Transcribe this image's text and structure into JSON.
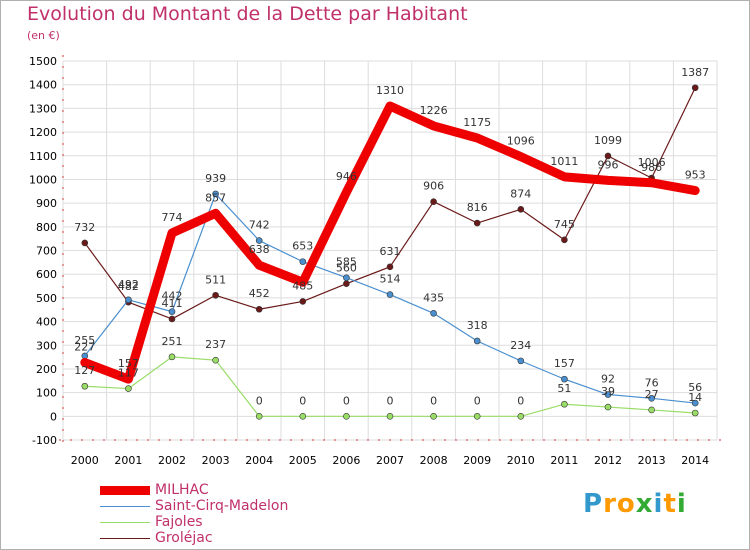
{
  "title": "Evolution du Montant de la Dette par Habitant",
  "unit": "(en €)",
  "logo": {
    "text": "Proxiti",
    "colors": [
      "#3399cc",
      "#ff9900",
      "#ff9900",
      "#33aa33",
      "#3399cc",
      "#ff9900",
      "#33aa33"
    ]
  },
  "chart_data": {
    "type": "line",
    "x": [
      "2000",
      "2001",
      "2002",
      "2003",
      "2004",
      "2005",
      "2006",
      "2007",
      "2008",
      "2009",
      "2010",
      "2011",
      "2012",
      "2013",
      "2014"
    ],
    "ylim": [
      -100,
      1500
    ],
    "yticks": [
      -100,
      0,
      100,
      200,
      300,
      400,
      500,
      600,
      700,
      800,
      900,
      1000,
      1100,
      1200,
      1300,
      1400,
      1500
    ],
    "grid": true,
    "legend_position": "bottom-left",
    "series": [
      {
        "name": "MILHAC",
        "color": "#ee0000",
        "values": [
          227,
          157,
          774,
          857,
          638,
          566,
          946,
          1310,
          1226,
          1175,
          1096,
          1011,
          996,
          986,
          953
        ],
        "labels": [
          "227",
          "157",
          "774",
          "857",
          "638",
          "",
          "946",
          "1310",
          "1226",
          "1175",
          "1096",
          "1011",
          "996",
          "986",
          "953"
        ]
      },
      {
        "name": "Saint-Cirq-Madelon",
        "color": "#4a8fcf",
        "values": [
          255,
          492,
          442,
          939,
          742,
          653,
          585,
          514,
          435,
          318,
          234,
          157,
          92,
          76,
          56
        ],
        "labels": [
          "255",
          "492",
          "442",
          "939",
          "742",
          "653",
          "585",
          "514",
          "435",
          "318",
          "234",
          "157",
          "92",
          "76",
          "56"
        ]
      },
      {
        "name": "Fajoles",
        "color": "#99dd66",
        "values": [
          127,
          117,
          251,
          237,
          0,
          0,
          0,
          0,
          0,
          0,
          0,
          51,
          39,
          27,
          14
        ],
        "labels": [
          "127",
          "117",
          "251",
          "237",
          "0",
          "0",
          "0",
          "0",
          "0",
          "0",
          "0",
          "51",
          "39",
          "27",
          "14"
        ]
      },
      {
        "name": "Groléjac",
        "color": "#6b1a1a",
        "values": [
          732,
          482,
          411,
          511,
          452,
          485,
          560,
          631,
          906,
          816,
          874,
          745,
          1099,
          1006,
          1387
        ],
        "labels": [
          "732",
          "482",
          "411",
          "511",
          "452",
          "485",
          "560",
          "631",
          "906",
          "816",
          "874",
          "745",
          "1099",
          "1006",
          "1387"
        ]
      }
    ]
  }
}
